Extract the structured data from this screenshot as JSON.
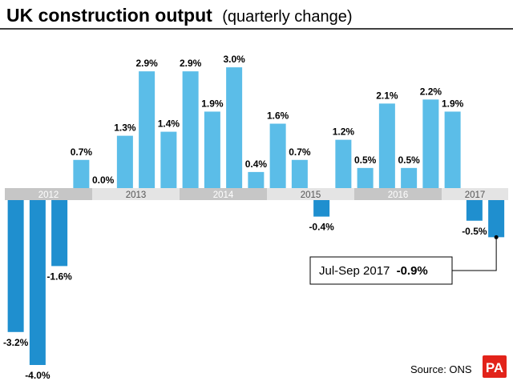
{
  "chart_data": {
    "type": "bar",
    "title": "UK construction output",
    "subtitle": "(quarterly change)",
    "unit": "%",
    "values": [
      -3.2,
      -4.0,
      -1.6,
      0.7,
      0.0,
      1.3,
      2.9,
      1.4,
      2.9,
      1.9,
      3.0,
      0.4,
      1.6,
      0.7,
      -0.4,
      1.2,
      0.5,
      2.1,
      0.5,
      2.2,
      1.9,
      -0.5,
      -0.9
    ],
    "value_labels": [
      "-3.2%",
      "-4.0%",
      "-1.6%",
      "0.7%",
      "0.0%",
      "1.3%",
      "2.9%",
      "1.4%",
      "2.9%",
      "1.9%",
      "3.0%",
      "0.4%",
      "1.6%",
      "0.7%",
      "-0.4%",
      "1.2%",
      "0.5%",
      "2.1%",
      "0.5%",
      "2.2%",
      "1.9%",
      "-0.5%",
      ""
    ],
    "years": [
      {
        "label": "2012",
        "start": 0,
        "count": 4
      },
      {
        "label": "2013",
        "start": 4,
        "count": 4
      },
      {
        "label": "2014",
        "start": 8,
        "count": 4
      },
      {
        "label": "2015",
        "start": 12,
        "count": 4
      },
      {
        "label": "2016",
        "start": 16,
        "count": 4
      },
      {
        "label": "2017",
        "start": 20,
        "count": 3
      }
    ],
    "ylim": [
      -4.0,
      3.0
    ],
    "grid": false,
    "annotation": {
      "index": 22,
      "label": "Jul-Sep 2017",
      "value_text": "-0.9%"
    },
    "colors": {
      "positive": "#5bbde8",
      "negative": "#1f8fcf",
      "band_dark": "#c6c6c6",
      "band_light": "#e4e4e4",
      "year_text_dark": "#ffffff",
      "year_text_light": "#555555"
    }
  },
  "source": "Source: ONS",
  "logo_text": "PA"
}
